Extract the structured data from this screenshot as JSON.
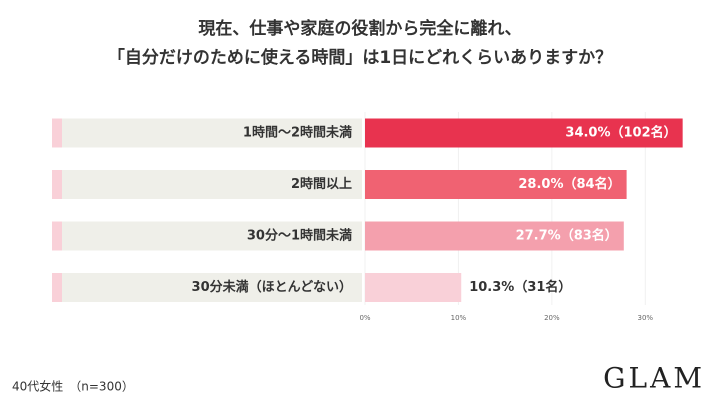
{
  "chart_data": {
    "type": "barh",
    "title": "現在、仕事や家庭の役割から完全に離れ、",
    "subtitle": "「自分だけのために使える時間」は1日にどれくらいありますか？",
    "categories": [
      "1時間〜2時間未満",
      "2時間以上",
      "30分〜1時間未満",
      "30分未満（ほとんどない）"
    ],
    "values": [
      34.0,
      28.0,
      27.7,
      10.3
    ],
    "value_labels": [
      "34.0%（102名）",
      "28.0%（84名）",
      "27.7%（83名）",
      "10.3%（31名）"
    ],
    "colors": [
      "#e8334f",
      "#f06272",
      "#f4a0ad",
      "#f9d0d8"
    ],
    "xlim": [
      0,
      35
    ],
    "xticks": [
      {
        "value": 0,
        "label": "0%"
      },
      {
        "value": 10,
        "label": "10%"
      },
      {
        "value": 20,
        "label": "20%"
      },
      {
        "value": 30,
        "label": "30%"
      }
    ],
    "grid": true,
    "note": "40代女性　（n=300）",
    "brand": "GLAM"
  }
}
